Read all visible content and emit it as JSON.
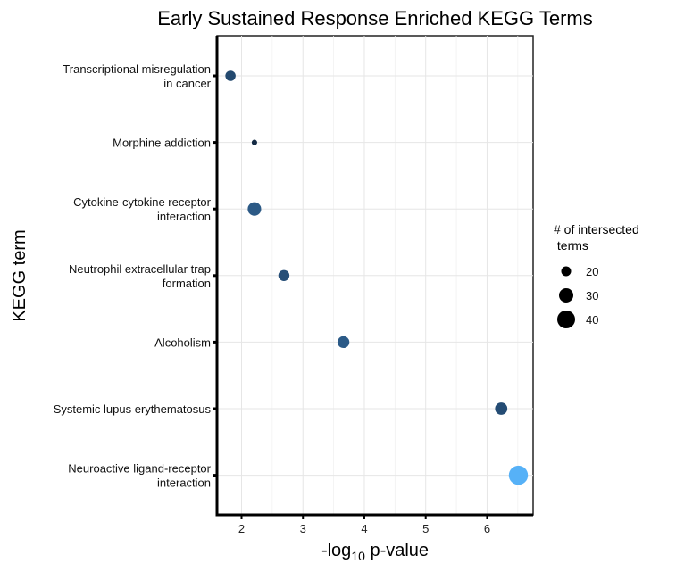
{
  "chart_data": {
    "type": "scatter",
    "title": "Early Sustained Response Enriched KEGG Terms",
    "xlabel_parts": [
      "-log",
      "10",
      " p-value"
    ],
    "ylabel": "KEGG term",
    "xlim": [
      1.6,
      6.75
    ],
    "xticks": [
      2,
      3,
      4,
      5,
      6
    ],
    "categories": [
      {
        "lines": [
          "Transcriptional misregulation",
          "in cancer"
        ]
      },
      {
        "lines": [
          "Morphine addiction"
        ]
      },
      {
        "lines": [
          "Cytokine-cytokine receptor",
          "interaction"
        ]
      },
      {
        "lines": [
          "Neutrophil extracellular trap",
          "formation"
        ]
      },
      {
        "lines": [
          "Alcoholism"
        ]
      },
      {
        "lines": [
          "Systemic lupus erythematosus"
        ]
      },
      {
        "lines": [
          "Neuroactive ligand-receptor",
          "interaction"
        ]
      }
    ],
    "points": [
      {
        "x": 1.82,
        "size": 22,
        "color": "#23496f"
      },
      {
        "x": 2.21,
        "size": 10,
        "color": "#142b44"
      },
      {
        "x": 2.21,
        "size": 30,
        "color": "#2c5a86"
      },
      {
        "x": 2.69,
        "size": 24,
        "color": "#264e77"
      },
      {
        "x": 3.66,
        "size": 26,
        "color": "#2b5a87"
      },
      {
        "x": 6.23,
        "size": 27,
        "color": "#244c74"
      },
      {
        "x": 6.51,
        "size": 44,
        "color": "#56b1f7"
      }
    ],
    "legend": {
      "title_lines": [
        "# of intersected",
        " terms"
      ],
      "entries": [
        {
          "label": "20",
          "size": 20
        },
        {
          "label": "30",
          "size": 30
        },
        {
          "label": "40",
          "size": 40
        }
      ],
      "position": "right"
    },
    "grid": true
  }
}
